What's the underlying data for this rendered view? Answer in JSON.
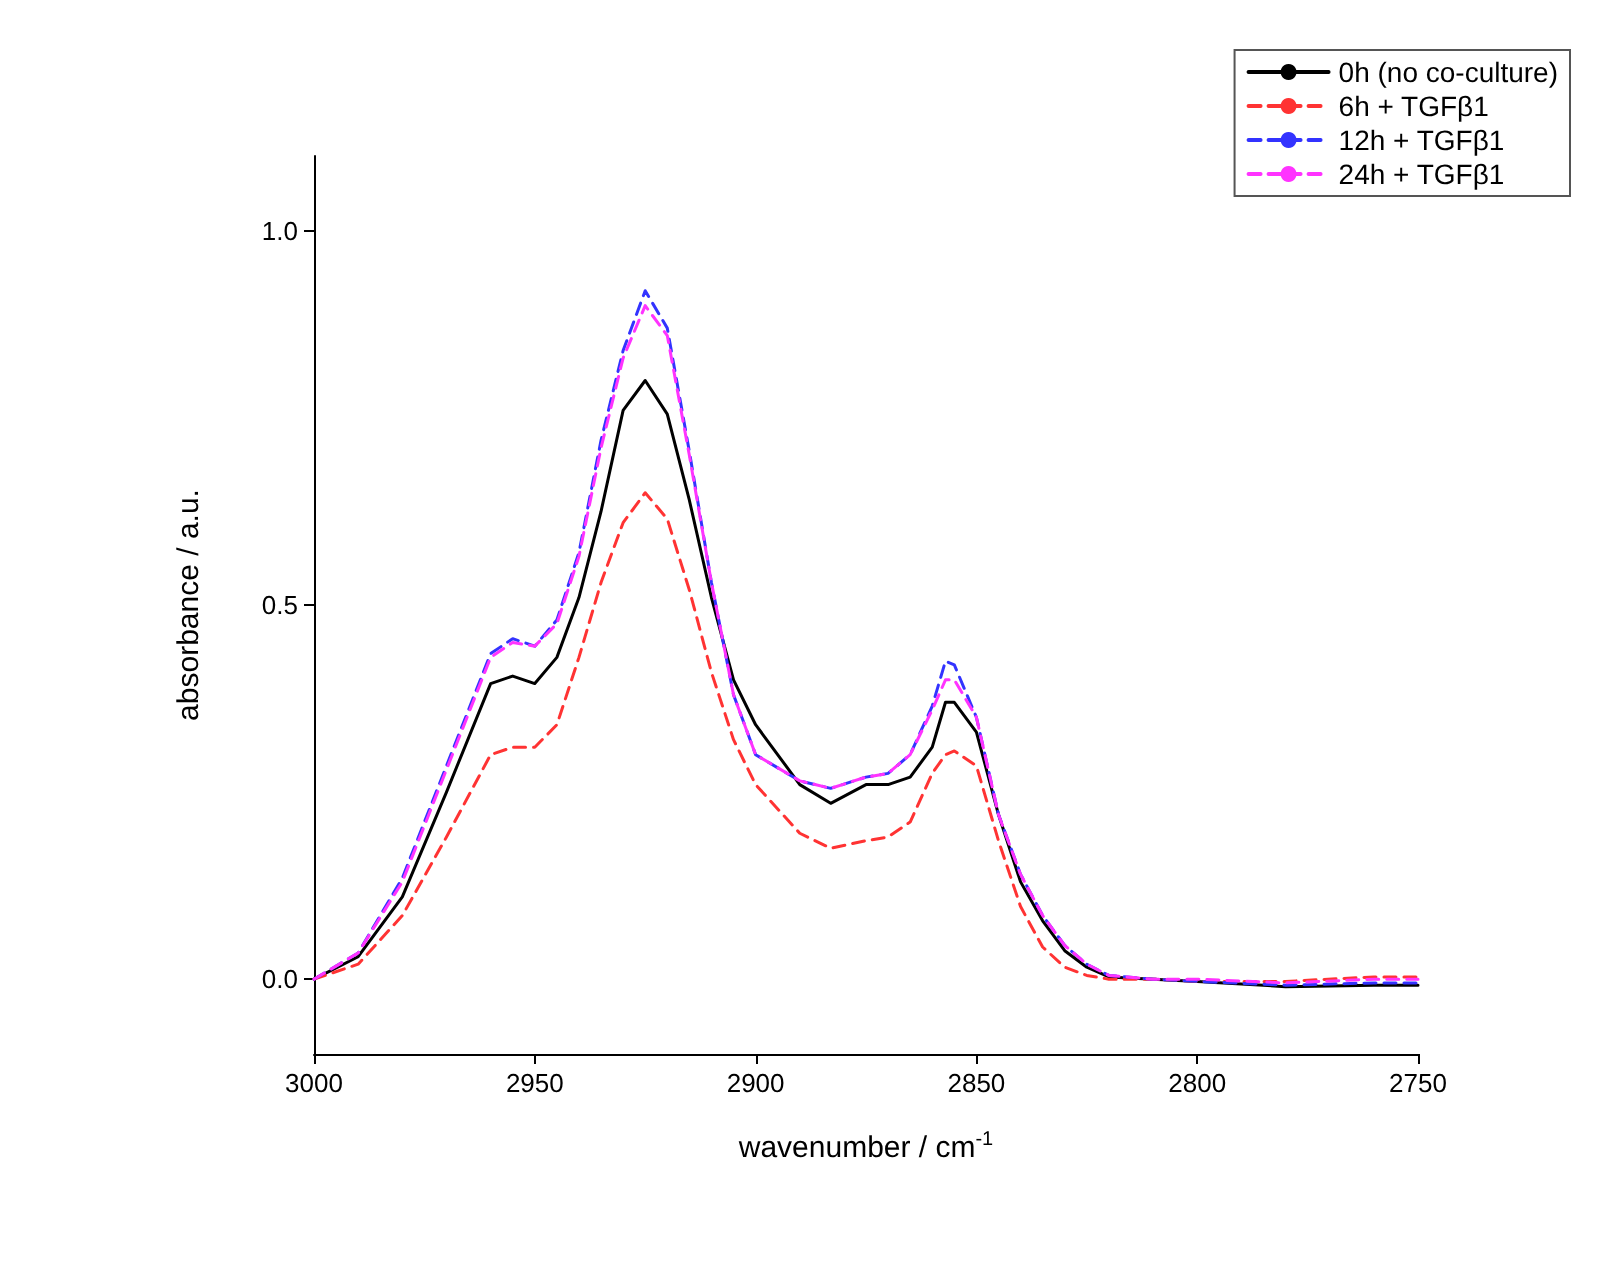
{
  "chart_data": {
    "type": "line",
    "xlabel": "wavenumber / cm$^{-1}$",
    "ylabel": "absorbance / a.u.",
    "x": [
      3000,
      2990,
      2980,
      2970,
      2960,
      2955,
      2950,
      2945,
      2940,
      2935,
      2930,
      2925,
      2920,
      2915,
      2910,
      2905,
      2900,
      2890,
      2883,
      2875,
      2870,
      2865,
      2860,
      2857,
      2855,
      2850,
      2845,
      2840,
      2835,
      2830,
      2825,
      2820,
      2810,
      2800,
      2780,
      2760,
      2750
    ],
    "xlim": [
      3000,
      2750
    ],
    "xticks": [
      3000,
      2950,
      2900,
      2850,
      2800,
      2750
    ],
    "ylim": [
      -0.1,
      1.1
    ],
    "yticks": [
      {
        "value": 0,
        "label": "0.0"
      },
      {
        "value": 0.5,
        "label": "0.5"
      },
      {
        "value": 1,
        "label": "1.0"
      }
    ],
    "grid": false,
    "legend": "top right",
    "marker": "none",
    "series": [
      {
        "name": "0h (no co-culture)",
        "color": "#000000",
        "line_style": "solid",
        "values": [
          0,
          0.03,
          0.11,
          0.25,
          0.395,
          0.405,
          0.395,
          0.43,
          0.51,
          0.625,
          0.76,
          0.8,
          0.755,
          0.64,
          0.51,
          0.4,
          0.34,
          0.26,
          0.235,
          0.26,
          0.26,
          0.27,
          0.31,
          0.37,
          0.37,
          0.33,
          0.22,
          0.13,
          0.078,
          0.038,
          0.016,
          0.003,
          0,
          -0.003,
          -0.01,
          -0.008,
          -0.008
        ]
      },
      {
        "name": "6h + TGFβ1",
        "color": "#ff3333",
        "line_style": "dashed",
        "values": [
          0,
          0.02,
          0.085,
          0.19,
          0.3,
          0.31,
          0.31,
          0.34,
          0.43,
          0.53,
          0.61,
          0.65,
          0.615,
          0.52,
          0.41,
          0.32,
          0.26,
          0.195,
          0.175,
          0.185,
          0.19,
          0.21,
          0.275,
          0.3,
          0.305,
          0.285,
          0.185,
          0.097,
          0.043,
          0.016,
          0.005,
          0,
          0,
          -0.003,
          -0.003,
          0.003,
          0.003
        ]
      },
      {
        "name": "12h + TGFβ1",
        "color": "#3333ff",
        "line_style": "dashed",
        "values": [
          0,
          0.035,
          0.135,
          0.285,
          0.435,
          0.455,
          0.445,
          0.48,
          0.57,
          0.72,
          0.84,
          0.92,
          0.87,
          0.705,
          0.53,
          0.38,
          0.3,
          0.265,
          0.255,
          0.27,
          0.275,
          0.3,
          0.365,
          0.425,
          0.42,
          0.35,
          0.22,
          0.14,
          0.085,
          0.045,
          0.02,
          0.005,
          0,
          -0.003,
          -0.008,
          -0.005,
          -0.005
        ]
      },
      {
        "name": "24h + TGFβ1",
        "color": "#ff33ff",
        "line_style": "dashed",
        "values": [
          0,
          0.035,
          0.13,
          0.28,
          0.43,
          0.45,
          0.445,
          0.475,
          0.565,
          0.71,
          0.83,
          0.9,
          0.86,
          0.7,
          0.53,
          0.38,
          0.3,
          0.265,
          0.255,
          0.27,
          0.275,
          0.3,
          0.36,
          0.4,
          0.4,
          0.35,
          0.22,
          0.14,
          0.085,
          0.045,
          0.02,
          0.005,
          0,
          0,
          -0.005,
          0,
          0
        ]
      }
    ]
  }
}
